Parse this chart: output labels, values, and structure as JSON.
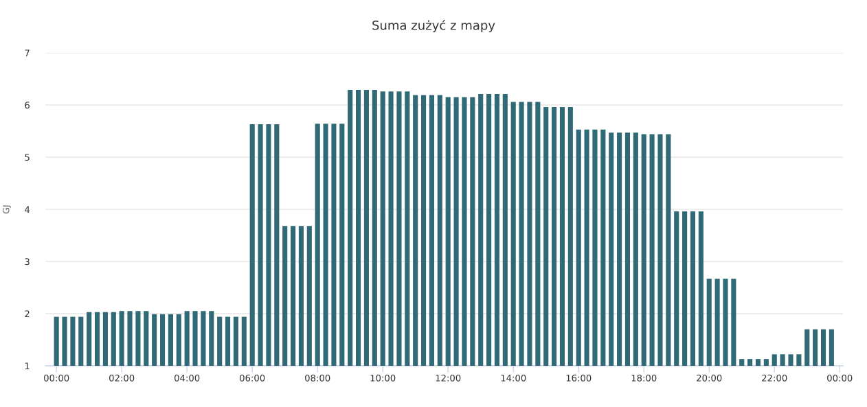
{
  "chart_data": {
    "type": "bar",
    "title": "Suma zużyć z mapy",
    "ylabel": "GJ",
    "x": [
      0,
      0.25,
      0.5,
      0.75,
      1,
      1.25,
      1.5,
      1.75,
      2,
      2.25,
      2.5,
      2.75,
      3,
      3.25,
      3.5,
      3.75,
      4,
      4.25,
      4.5,
      4.75,
      5,
      5.25,
      5.5,
      5.75,
      6,
      6.25,
      6.5,
      6.75,
      7,
      7.25,
      7.5,
      7.75,
      8,
      8.25,
      8.5,
      8.75,
      9,
      9.25,
      9.5,
      9.75,
      10,
      10.25,
      10.5,
      10.75,
      11,
      11.25,
      11.5,
      11.75,
      12,
      12.25,
      12.5,
      12.75,
      13,
      13.25,
      13.5,
      13.75,
      14,
      14.25,
      14.5,
      14.75,
      15,
      15.25,
      15.5,
      15.75,
      16,
      16.25,
      16.5,
      16.75,
      17,
      17.25,
      17.5,
      17.75,
      18,
      18.25,
      18.5,
      18.75,
      19,
      19.25,
      19.5,
      19.75,
      20,
      20.25,
      20.5,
      20.75,
      21,
      21.25,
      21.5,
      21.75,
      22,
      22.25,
      22.5,
      22.75,
      23,
      23.25,
      23.5,
      23.75
    ],
    "values": [
      1.94,
      1.94,
      1.94,
      1.94,
      2.03,
      2.03,
      2.03,
      2.03,
      2.05,
      2.05,
      2.05,
      2.05,
      1.99,
      1.99,
      1.99,
      1.99,
      2.05,
      2.05,
      2.05,
      2.05,
      1.94,
      1.94,
      1.94,
      1.94,
      5.63,
      5.63,
      5.63,
      5.63,
      3.68,
      3.68,
      3.68,
      3.68,
      5.64,
      5.64,
      5.64,
      5.64,
      6.29,
      6.29,
      6.29,
      6.29,
      6.26,
      6.26,
      6.26,
      6.26,
      6.19,
      6.19,
      6.19,
      6.19,
      6.15,
      6.15,
      6.15,
      6.15,
      6.21,
      6.21,
      6.21,
      6.21,
      6.06,
      6.06,
      6.06,
      6.06,
      5.96,
      5.96,
      5.96,
      5.96,
      5.53,
      5.53,
      5.53,
      5.53,
      5.47,
      5.47,
      5.47,
      5.47,
      5.44,
      5.44,
      5.44,
      5.44,
      3.96,
      3.96,
      3.96,
      3.96,
      2.67,
      2.67,
      2.67,
      2.67,
      1.13,
      1.13,
      1.13,
      1.13,
      1.22,
      1.22,
      1.22,
      1.22,
      1.7,
      1.7,
      1.7,
      1.7
    ],
    "color": "#2f6a76",
    "xlim": [
      -0.34,
      24.1
    ],
    "xticks": [
      {
        "value": 0,
        "label": "00:00"
      },
      {
        "value": 2,
        "label": "02:00"
      },
      {
        "value": 4,
        "label": "04:00"
      },
      {
        "value": 6,
        "label": "06:00"
      },
      {
        "value": 8,
        "label": "08:00"
      },
      {
        "value": 10,
        "label": "10:00"
      },
      {
        "value": 12,
        "label": "12:00"
      },
      {
        "value": 14,
        "label": "14:00"
      },
      {
        "value": 16,
        "label": "16:00"
      },
      {
        "value": 18,
        "label": "18:00"
      },
      {
        "value": 20,
        "label": "20:00"
      },
      {
        "value": 22,
        "label": "22:00"
      },
      {
        "value": 24,
        "label": "00:00"
      }
    ],
    "ylim": [
      1,
      7
    ],
    "yticks": [
      1,
      2,
      3,
      4,
      5,
      6,
      7
    ],
    "grid": "y"
  }
}
